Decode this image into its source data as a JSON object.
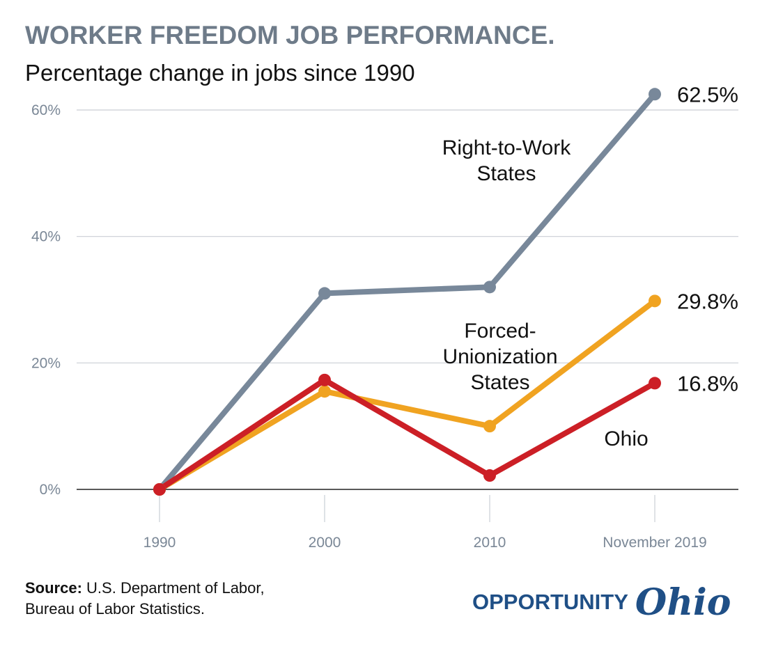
{
  "header": {
    "title": "WORKER FREEDOM JOB PERFORMANCE.",
    "subtitle": "Percentage change in jobs since 1990"
  },
  "footer": {
    "source_label": "Source:",
    "source_line1": "U.S. Department of Labor,",
    "source_line2": "Bureau of Labor Statistics.",
    "logo_word": "OPPORTUNITY",
    "logo_script": "Ohio"
  },
  "chart_data": {
    "type": "line",
    "title": "WORKER FREEDOM JOB PERFORMANCE.",
    "subtitle": "Percentage change in jobs since 1990",
    "categories": [
      "1990",
      "2000",
      "2010",
      "November 2019"
    ],
    "y_ticks": [
      "0%",
      "20%",
      "40%",
      "60%"
    ],
    "ylim": [
      0,
      60
    ],
    "grid": true,
    "series": [
      {
        "name": "Right-to-Work States",
        "label_lines": [
          "Right-to-Work",
          "States"
        ],
        "color": "#78889a",
        "values": [
          0,
          31,
          32,
          62.5
        ],
        "end_label": "62.5%"
      },
      {
        "name": "Forced-Unionization States",
        "label_lines": [
          "Forced-",
          "Unionization",
          "States"
        ],
        "color": "#f0a321",
        "values": [
          0,
          15.5,
          10,
          29.8
        ],
        "end_label": "29.8%"
      },
      {
        "name": "Ohio",
        "label_lines": [
          "Ohio"
        ],
        "color": "#cc1f26",
        "values": [
          0,
          17.3,
          2.2,
          16.8
        ],
        "end_label": "16.8%"
      }
    ]
  }
}
